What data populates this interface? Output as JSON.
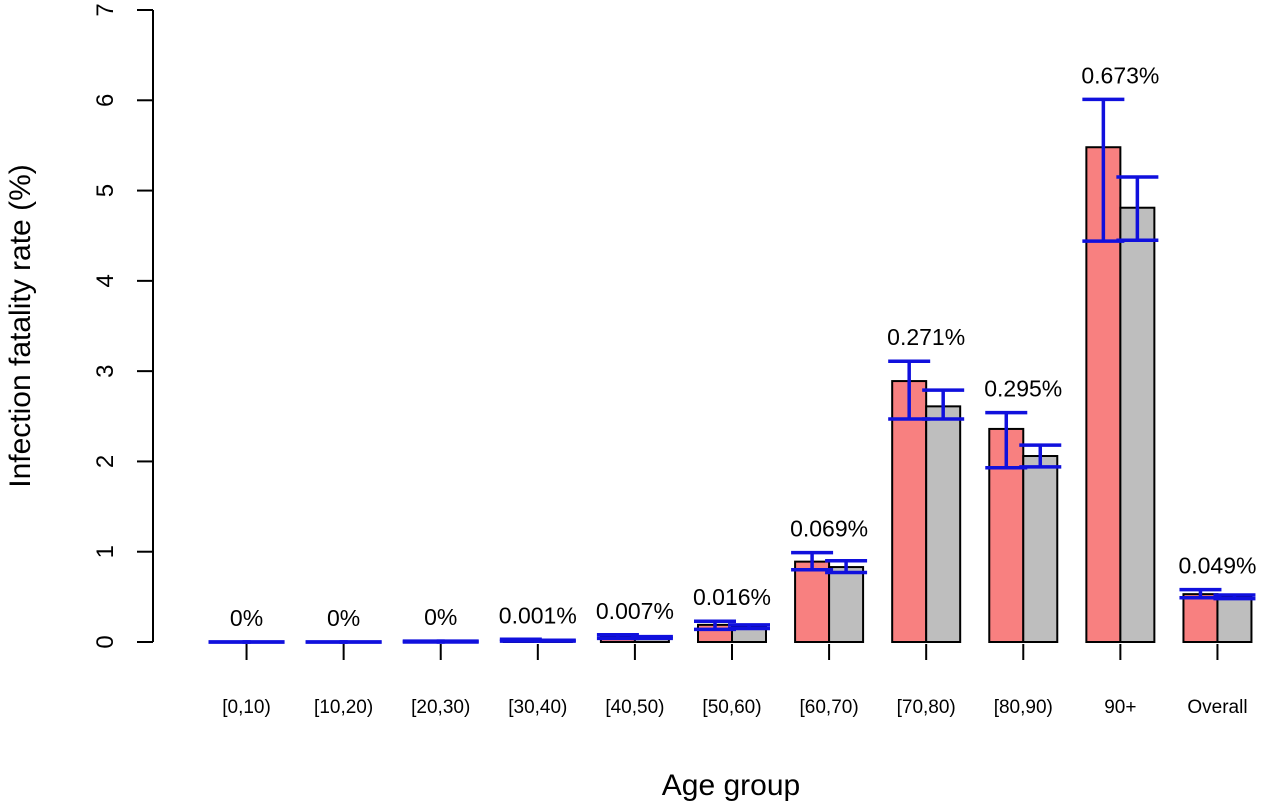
{
  "chart_data": {
    "type": "bar",
    "title": "",
    "xlabel": "Age group",
    "ylabel": "Infection fatality rate (%)",
    "ylim": [
      0,
      7
    ],
    "yticks": [
      0,
      1,
      2,
      3,
      4,
      5,
      6,
      7
    ],
    "grid": false,
    "legend": "none",
    "categories": [
      "[0,10)",
      "[10,20)",
      "[20,30)",
      "[30,40)",
      "[40,50)",
      "[50,60)",
      "[60,70)",
      "[70,80)",
      "[80,90)",
      "90+",
      "Overall"
    ],
    "annotations": [
      "0%",
      "0%",
      "0%",
      "0.001%",
      "0.007%",
      "0.016%",
      "0.069%",
      "0.271%",
      "0.295%",
      "0.673%",
      "0.049%"
    ],
    "series": [
      {
        "color": "#f88080",
        "values": [
          0,
          0,
          0.005,
          0.02,
          0.06,
          0.19,
          0.89,
          2.89,
          2.36,
          5.48,
          0.53
        ],
        "error_low": [
          0,
          0,
          0,
          0.01,
          0.04,
          0.14,
          0.8,
          2.47,
          1.93,
          4.44,
          0.49
        ],
        "error_high": [
          0,
          0,
          0.01,
          0.03,
          0.08,
          0.23,
          0.99,
          3.11,
          2.54,
          6.01,
          0.58
        ]
      },
      {
        "color": "#bebebe",
        "values": [
          0,
          0,
          0.004,
          0.02,
          0.05,
          0.17,
          0.83,
          2.61,
          2.06,
          4.81,
          0.5
        ],
        "error_low": [
          0,
          0,
          0,
          0.01,
          0.04,
          0.15,
          0.77,
          2.47,
          1.94,
          4.45,
          0.48
        ],
        "error_high": [
          0,
          0,
          0.01,
          0.02,
          0.06,
          0.19,
          0.9,
          2.79,
          2.18,
          5.15,
          0.52
        ]
      }
    ]
  }
}
